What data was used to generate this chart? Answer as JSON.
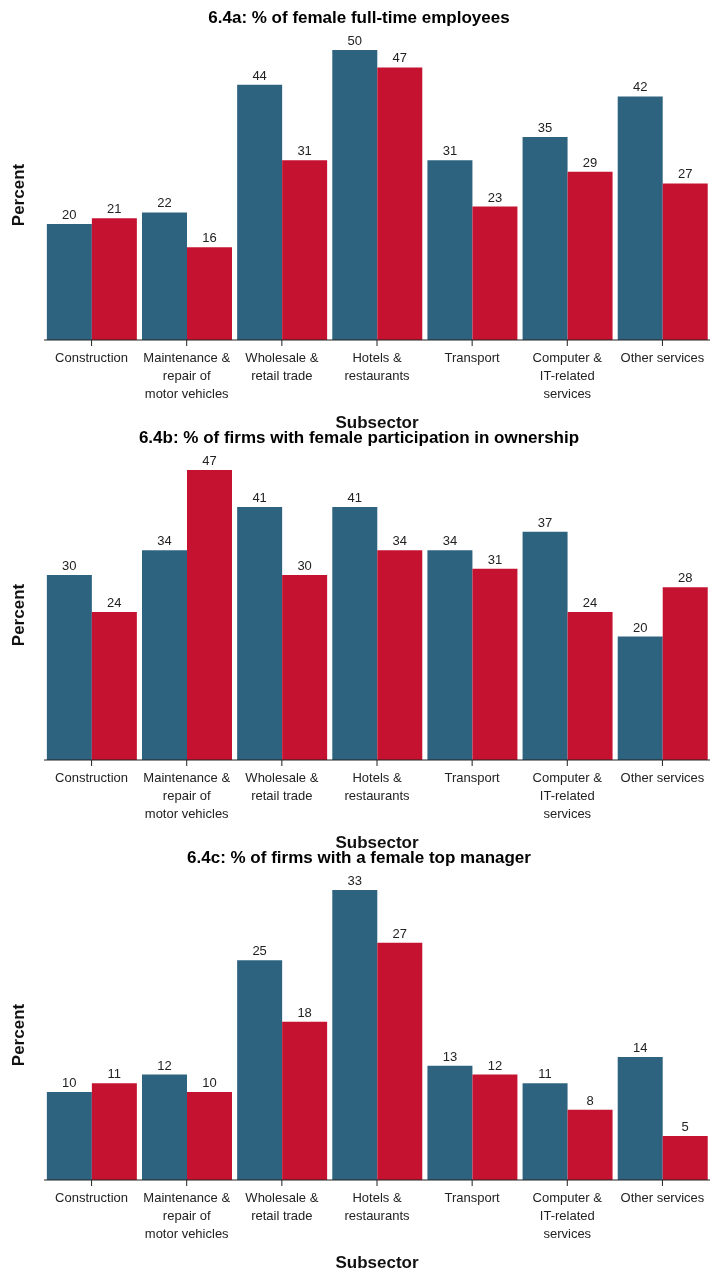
{
  "chart_data": [
    {
      "type": "bar",
      "title": "6.4a: % of female full-time employees",
      "xlabel": "Subsector",
      "ylabel": "Percent",
      "data_labels": true,
      "categories": [
        "Construction",
        "Maintenance & repair of motor vehicles",
        "Wholesale & retail trade",
        "Hotels & restaurants",
        "Transport",
        "Computer & IT-related services",
        "Other services"
      ],
      "series": [
        {
          "color": "#2e6380",
          "values": [
            20,
            22,
            44,
            50,
            31,
            35,
            42
          ]
        },
        {
          "color": "#c41230",
          "values": [
            21,
            16,
            31,
            47,
            23,
            29,
            27
          ]
        }
      ]
    },
    {
      "type": "bar",
      "title": "6.4b: % of firms with female participation in ownership",
      "xlabel": "Subsector",
      "ylabel": "Percent",
      "data_labels": true,
      "categories": [
        "Construction",
        "Maintenance & repair of motor vehicles",
        "Wholesale & retail trade",
        "Hotels & restaurants",
        "Transport",
        "Computer & IT-related services",
        "Other services"
      ],
      "series": [
        {
          "color": "#2e6380",
          "values": [
            30,
            34,
            41,
            41,
            34,
            37,
            20
          ]
        },
        {
          "color": "#c41230",
          "values": [
            24,
            47,
            30,
            34,
            31,
            24,
            28
          ]
        }
      ]
    },
    {
      "type": "bar",
      "title": "6.4c: % of firms with a female top manager",
      "xlabel": "Subsector",
      "ylabel": "Percent",
      "data_labels": true,
      "categories": [
        "Construction",
        "Maintenance & repair of motor vehicles",
        "Wholesale & retail trade",
        "Hotels & restaurants",
        "Transport",
        "Computer & IT-related services",
        "Other services"
      ],
      "series": [
        {
          "color": "#2e6380",
          "values": [
            10,
            12,
            25,
            33,
            13,
            11,
            14
          ]
        },
        {
          "color": "#c41230",
          "values": [
            11,
            10,
            18,
            27,
            12,
            8,
            5
          ]
        }
      ]
    }
  ]
}
